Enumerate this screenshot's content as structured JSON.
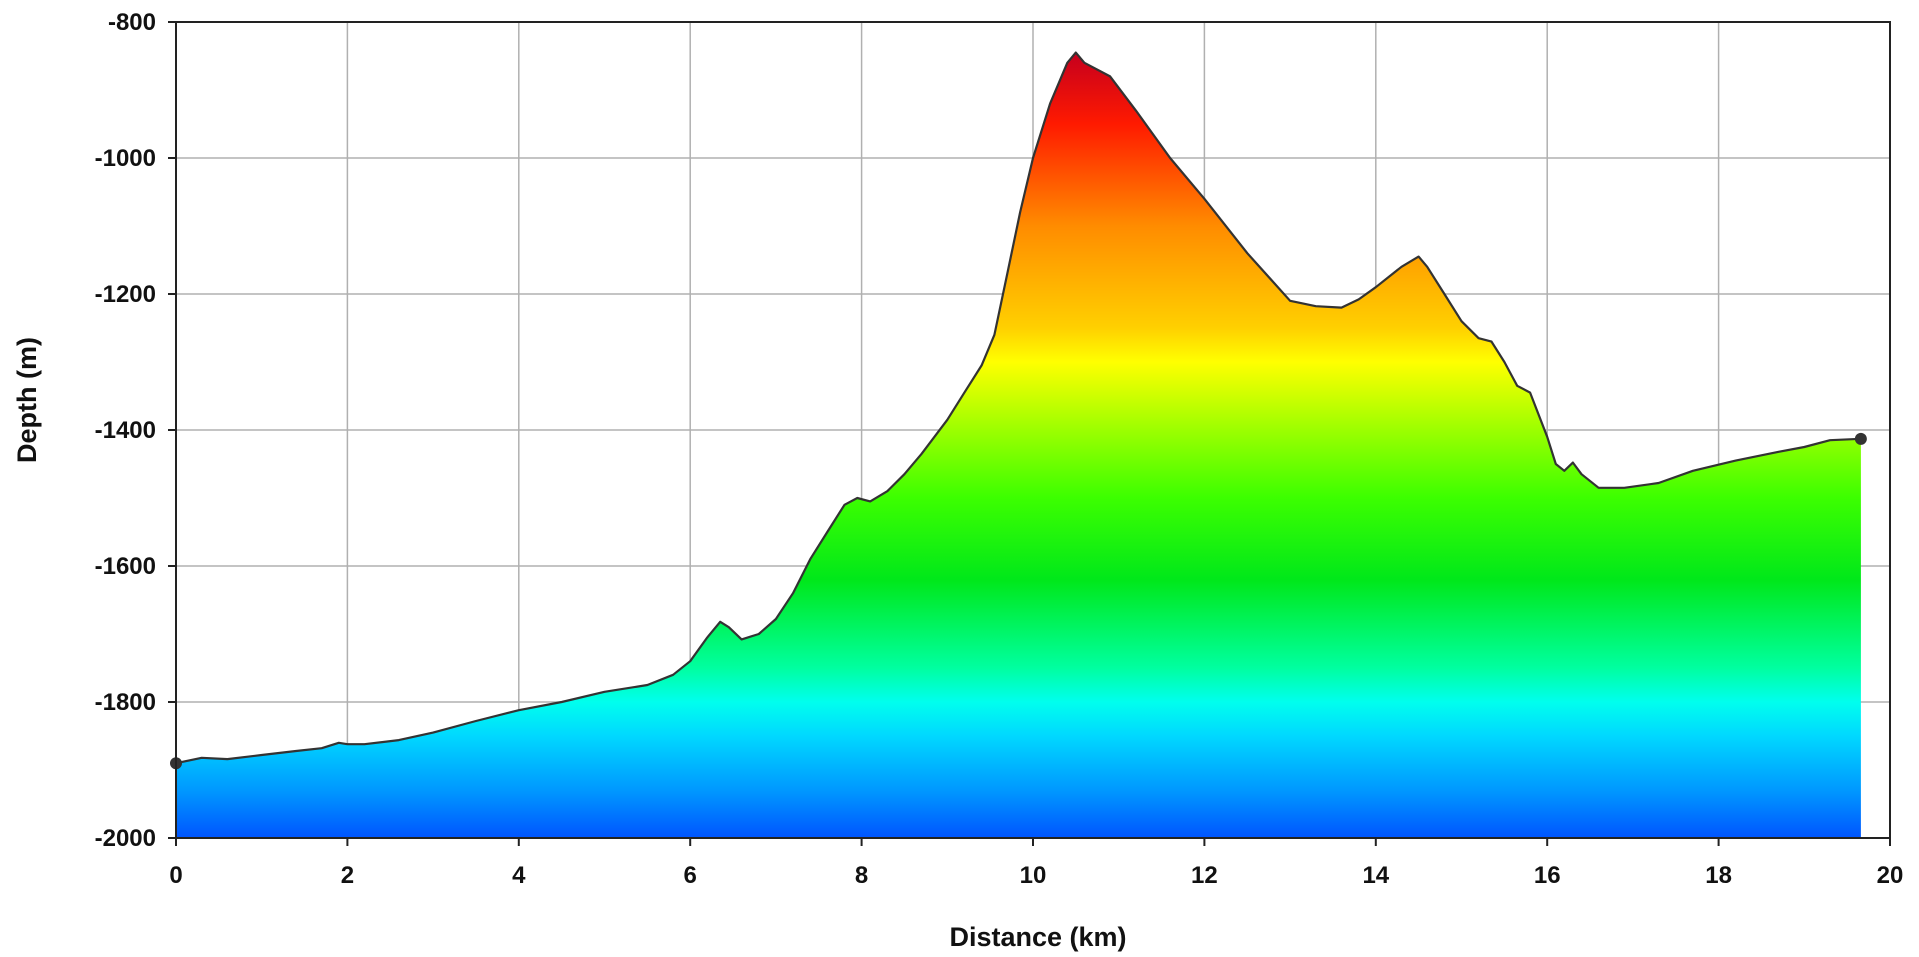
{
  "chart_data": {
    "type": "area",
    "title": "",
    "xlabel": "Distance (km)",
    "ylabel": "Depth (m)",
    "xlim": [
      0,
      20
    ],
    "ylim": [
      -2000,
      -800
    ],
    "xticks": [
      0,
      2,
      4,
      6,
      8,
      10,
      12,
      14,
      16,
      18,
      20
    ],
    "yticks": [
      -800,
      -1000,
      -1200,
      -1400,
      -1600,
      -1800,
      -2000
    ],
    "grid": true,
    "legend": "none",
    "fill_gradient": [
      {
        "depth": -850,
        "color": "#c8001c"
      },
      {
        "depth": -950,
        "color": "#ff1a00"
      },
      {
        "depth": -1100,
        "color": "#ff8c00"
      },
      {
        "depth": -1250,
        "color": "#ffd000"
      },
      {
        "depth": -1300,
        "color": "#ffff00"
      },
      {
        "depth": -1400,
        "color": "#9cff00"
      },
      {
        "depth": -1500,
        "color": "#3cff00"
      },
      {
        "depth": -1620,
        "color": "#00e81a"
      },
      {
        "depth": -1750,
        "color": "#00ffa0"
      },
      {
        "depth": -1800,
        "color": "#00ffee"
      },
      {
        "depth": -1850,
        "color": "#00d8ff"
      },
      {
        "depth": -1930,
        "color": "#0098ff"
      },
      {
        "depth": -2000,
        "color": "#0055ff"
      }
    ],
    "line_color": "#333333",
    "endpoint_color": "#333333",
    "series": [
      {
        "x": [
          0,
          0.3,
          0.6,
          1.0,
          1.4,
          1.7,
          1.9,
          2.0,
          2.2,
          2.6,
          3.0,
          3.5,
          4.0,
          4.5,
          5.0,
          5.5,
          5.8,
          6.0,
          6.2,
          6.35,
          6.45,
          6.6,
          6.8,
          7.0,
          7.2,
          7.4,
          7.6,
          7.8,
          7.95,
          8.1,
          8.3,
          8.5,
          8.7,
          9.0,
          9.2,
          9.4,
          9.55,
          9.7,
          9.85,
          10.0,
          10.2,
          10.4,
          10.5,
          10.6,
          10.9,
          11.2,
          11.6,
          12.0,
          12.5,
          13.0,
          13.3,
          13.6,
          13.8,
          14.0,
          14.3,
          14.5,
          14.6,
          14.8,
          15.0,
          15.2,
          15.35,
          15.5,
          15.65,
          15.8,
          16.0,
          16.1,
          16.2,
          16.3,
          16.4,
          16.6,
          16.9,
          17.3,
          17.7,
          18.2,
          18.7,
          19.0,
          19.3,
          19.66
        ],
        "y": [
          -1890,
          -1882,
          -1884,
          -1878,
          -1872,
          -1868,
          -1860,
          -1862,
          -1862,
          -1856,
          -1845,
          -1828,
          -1812,
          -1800,
          -1785,
          -1775,
          -1760,
          -1740,
          -1705,
          -1682,
          -1690,
          -1708,
          -1700,
          -1678,
          -1640,
          -1590,
          -1550,
          -1510,
          -1500,
          -1505,
          -1490,
          -1465,
          -1435,
          -1385,
          -1345,
          -1305,
          -1260,
          -1170,
          -1080,
          -1000,
          -920,
          -860,
          -845,
          -860,
          -880,
          -930,
          -1000,
          -1060,
          -1140,
          -1210,
          -1218,
          -1220,
          -1208,
          -1190,
          -1160,
          -1145,
          -1160,
          -1200,
          -1240,
          -1265,
          -1270,
          -1300,
          -1335,
          -1345,
          -1410,
          -1450,
          -1460,
          -1448,
          -1465,
          -1485,
          -1485,
          -1478,
          -1460,
          -1445,
          -1432,
          -1425,
          -1415,
          -1413
        ]
      }
    ],
    "endpoints": [
      {
        "x": 0,
        "y": -1890
      },
      {
        "x": 19.66,
        "y": -1413
      }
    ]
  }
}
